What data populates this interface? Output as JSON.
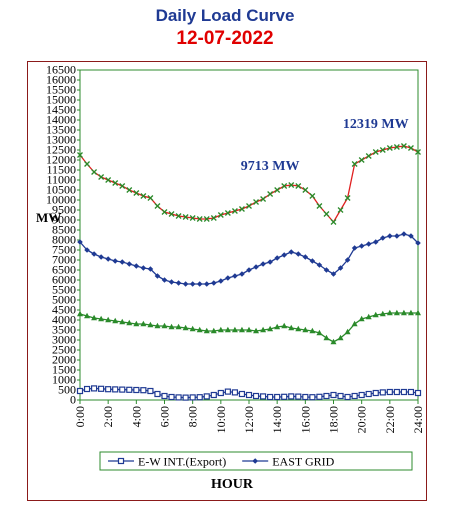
{
  "header": {
    "title": "Daily Load Curve",
    "date": "12-07-2022"
  },
  "chart_data": {
    "type": "line",
    "ylabel": "MW",
    "xlabel": "HOUR",
    "ylim": [
      0,
      16500
    ],
    "yticks": [
      0,
      500,
      1000,
      1500,
      2000,
      2500,
      3000,
      3500,
      4000,
      4500,
      5000,
      5500,
      6000,
      6500,
      7000,
      7500,
      8000,
      8500,
      9000,
      9500,
      10000,
      10500,
      11000,
      11500,
      12000,
      12500,
      13000,
      13500,
      14000,
      14500,
      15000,
      15500,
      16000,
      16500
    ],
    "xlim": [
      0,
      24
    ],
    "xticks": [
      "0:00",
      "2:00",
      "4:00",
      "6:00",
      "8:00",
      "10:00",
      "12:00",
      "14:00",
      "16:00",
      "18:00",
      "20:00",
      "22:00",
      "24:00"
    ],
    "grid": false,
    "legend_position": "bottom",
    "annotations": [
      {
        "text": "9713 MW",
        "x": 13.5,
        "y": 11500,
        "color": "#1f3a93"
      },
      {
        "text": "12319 MW",
        "x": 21,
        "y": 13600,
        "color": "#1f3a93"
      }
    ],
    "x": [
      0,
      0.5,
      1,
      1.5,
      2,
      2.5,
      3,
      3.5,
      4,
      4.5,
      5,
      5.5,
      6,
      6.5,
      7,
      7.5,
      8,
      8.5,
      9,
      9.5,
      10,
      10.5,
      11,
      11.5,
      12,
      12.5,
      13,
      13.5,
      14,
      14.5,
      15,
      15.5,
      16,
      16.5,
      17,
      17.5,
      18,
      18.5,
      19,
      19.5,
      20,
      20.5,
      21,
      21.5,
      22,
      22.5,
      23,
      23.5,
      24
    ],
    "series": [
      {
        "name": "E-W INT.(Export)",
        "color": "#1f3a93",
        "marker": "open-square",
        "in_legend": true,
        "values": [
          450,
          550,
          580,
          560,
          540,
          530,
          520,
          510,
          500,
          490,
          450,
          300,
          200,
          150,
          130,
          120,
          130,
          140,
          180,
          250,
          350,
          420,
          380,
          300,
          250,
          200,
          180,
          150,
          150,
          160,
          180,
          170,
          150,
          140,
          160,
          200,
          250,
          200,
          150,
          200,
          250,
          300,
          350,
          380,
          400,
          400,
          400,
          400,
          350
        ]
      },
      {
        "name": "EAST GRID",
        "color": "#1f3a93",
        "marker": "diamond",
        "in_legend": true,
        "values": [
          7900,
          7500,
          7300,
          7150,
          7050,
          6950,
          6900,
          6800,
          6700,
          6600,
          6550,
          6200,
          6000,
          5900,
          5850,
          5800,
          5800,
          5800,
          5800,
          5850,
          5950,
          6100,
          6200,
          6300,
          6500,
          6650,
          6800,
          6900,
          7100,
          7250,
          7400,
          7300,
          7150,
          6950,
          6750,
          6500,
          6300,
          6600,
          7000,
          7600,
          7700,
          7800,
          7900,
          8100,
          8200,
          8200,
          8300,
          8200,
          7850
        ]
      },
      {
        "name": "",
        "color": "#e02020",
        "marker": "x-green",
        "in_legend": false,
        "values": [
          12250,
          11800,
          11400,
          11150,
          11000,
          10850,
          10700,
          10500,
          10350,
          10200,
          10100,
          9700,
          9400,
          9300,
          9200,
          9150,
          9100,
          9050,
          9050,
          9100,
          9250,
          9350,
          9450,
          9550,
          9700,
          9900,
          10050,
          10300,
          10500,
          10700,
          10750,
          10700,
          10500,
          10200,
          9700,
          9300,
          8900,
          9500,
          10100,
          11800,
          12000,
          12200,
          12400,
          12500,
          12600,
          12650,
          12700,
          12600,
          12400
        ]
      },
      {
        "name": "",
        "color": "#2a8a2a",
        "marker": "triangle",
        "in_legend": false,
        "values": [
          4300,
          4200,
          4100,
          4050,
          4000,
          3950,
          3900,
          3850,
          3800,
          3800,
          3750,
          3700,
          3700,
          3650,
          3650,
          3600,
          3550,
          3500,
          3450,
          3450,
          3500,
          3500,
          3500,
          3500,
          3500,
          3450,
          3500,
          3550,
          3650,
          3700,
          3600,
          3550,
          3500,
          3450,
          3350,
          3100,
          2900,
          3100,
          3400,
          3800,
          4050,
          4150,
          4250,
          4300,
          4350,
          4350,
          4350,
          4350,
          4350
        ]
      }
    ]
  }
}
